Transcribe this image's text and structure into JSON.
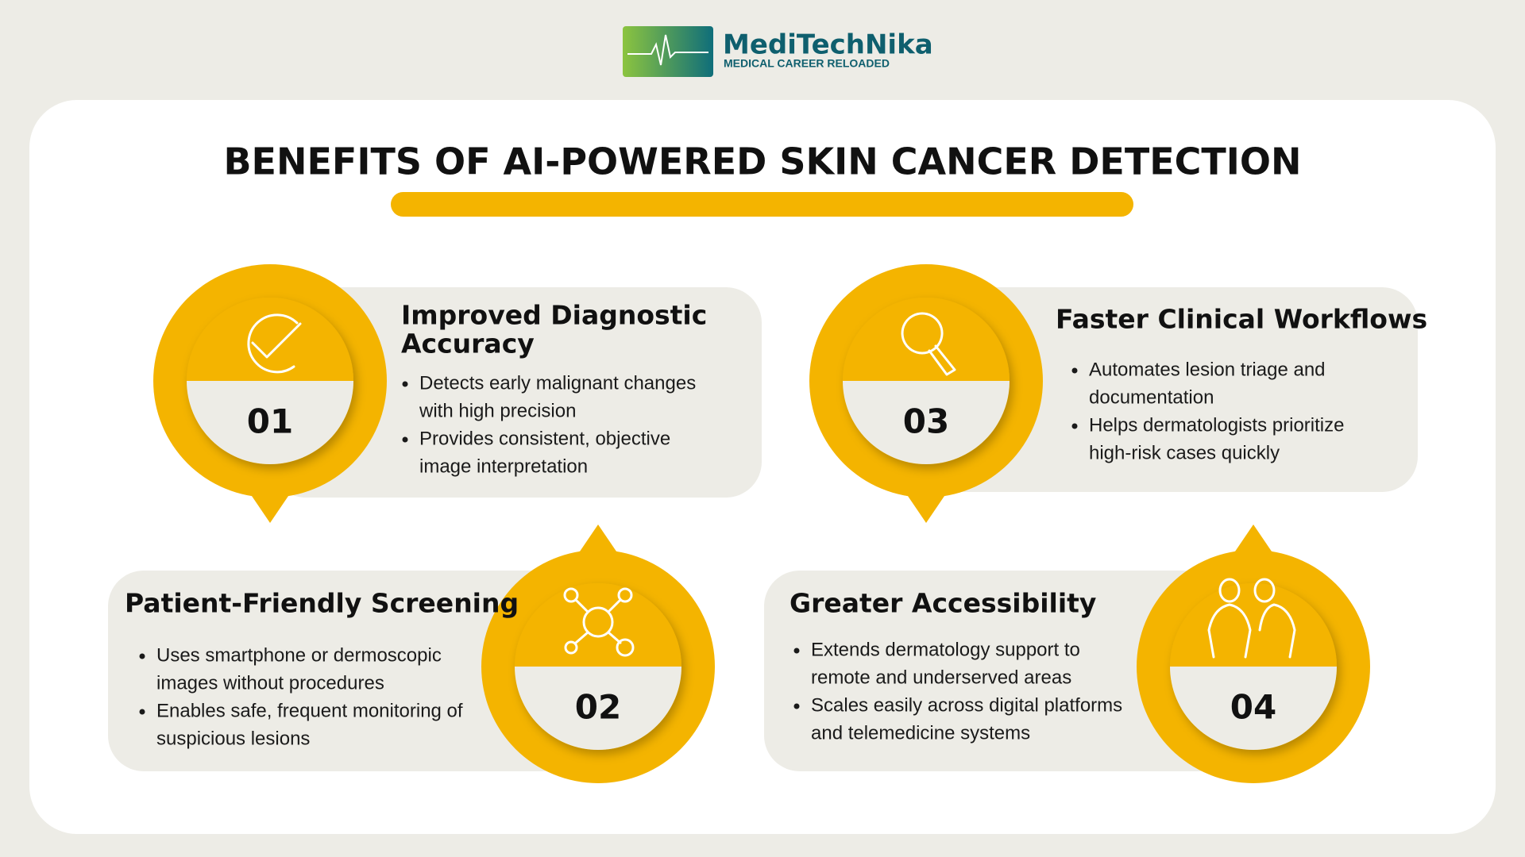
{
  "header": {
    "brand": "MediTechNika",
    "tagline": "MEDICAL CAREER RELOADED"
  },
  "title": "BENEFITS OF AI-POWERED SKIN CANCER DETECTION",
  "cards": [
    {
      "number": "01",
      "title": [
        "Improved Diagnostic",
        "Accuracy"
      ],
      "bullets": [
        [
          "Detects early malignant changes",
          "with high precision"
        ],
        [
          "Provides consistent, objective",
          "image interpretation"
        ]
      ]
    },
    {
      "number": "02",
      "title": [
        "Patient-Friendly Screening"
      ],
      "bullets": [
        [
          "Uses smartphone or dermoscopic",
          "images without procedures"
        ],
        [
          "Enables safe, frequent monitoring of",
          "suspicious lesions"
        ]
      ]
    },
    {
      "number": "03",
      "title": [
        "Faster Clinical Workflows"
      ],
      "bullets": [
        [
          "Automates lesion triage and",
          "documentation"
        ],
        [
          "Helps dermatologists prioritize",
          "high-risk cases quickly"
        ]
      ]
    },
    {
      "number": "04",
      "title": [
        "Greater Accessibility"
      ],
      "bullets": [
        [
          "Extends dermatology support to",
          "remote and underserved areas"
        ],
        [
          "Scales easily across digital platforms",
          "and telemedicine systems"
        ]
      ]
    }
  ]
}
